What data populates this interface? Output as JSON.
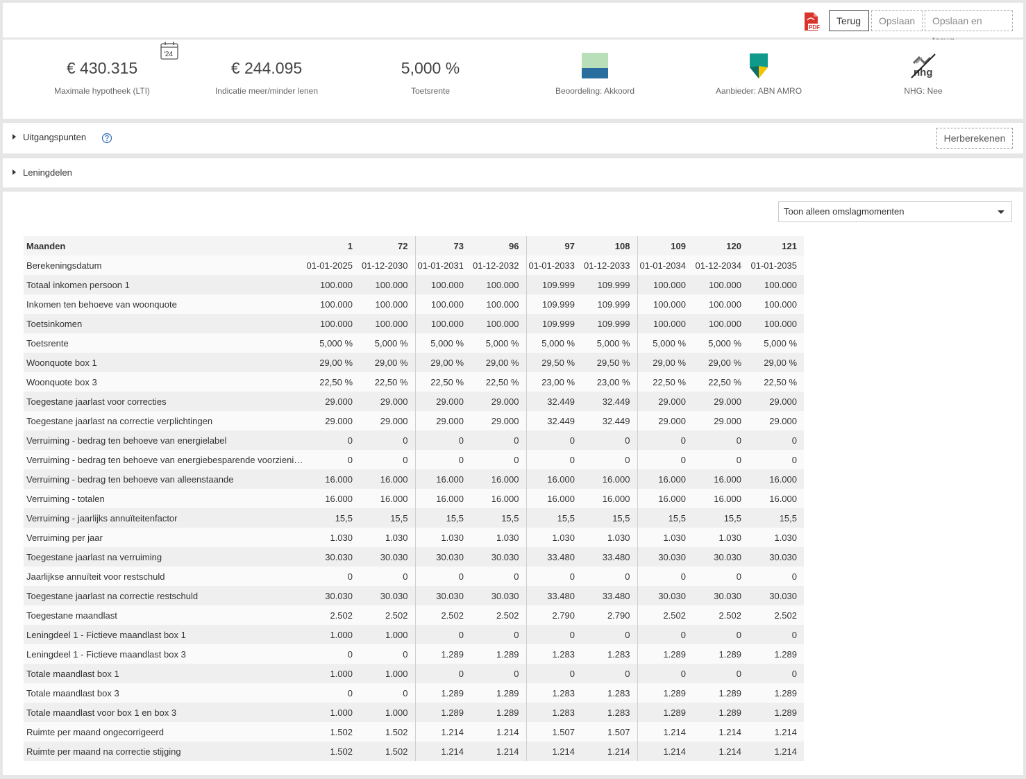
{
  "toolbar": {
    "pdf_icon": "pdf-file-icon",
    "terug_label": "Terug",
    "opslaan_label": "Opslaan",
    "opslaan_terug_label": "Opslaan en terug"
  },
  "summary": {
    "max_hypotheek": {
      "value": "€ 430.315",
      "label": "Maximale hypotheek (LTI)",
      "badge": "'24"
    },
    "indicatie": {
      "value": "€ 244.095",
      "label": "Indicatie meer/minder lenen"
    },
    "toetsrente": {
      "value": "5,000 %",
      "label": "Toetsrente"
    },
    "beoordeling": {
      "label": "Beoordeling: Akkoord",
      "colors": [
        "#b8dfb8",
        "#2a6ea0"
      ]
    },
    "aanbieder": {
      "label": "Aanbieder: ABN AMRO"
    },
    "nhg": {
      "label": "NHG: Nee",
      "logo_text": "nhg"
    }
  },
  "uitgangspunten": {
    "title": "Uitgangspunten",
    "herberekenen_label": "Herberekenen"
  },
  "leningdelen": {
    "title": "Leningdelen"
  },
  "view_select": {
    "selected": "Toon alleen omslagmomenten"
  },
  "table": {
    "header_label": "Maanden",
    "months": [
      "1",
      "72",
      "73",
      "96",
      "97",
      "108",
      "109",
      "120",
      "121"
    ],
    "datum_label": "Berekeningsdatum",
    "dates": [
      "01-01-2025",
      "01-12-2030",
      "01-01-2031",
      "01-12-2032",
      "01-01-2033",
      "01-12-2033",
      "01-01-2034",
      "01-12-2034",
      "01-01-2035"
    ],
    "rows": [
      {
        "label": "Totaal inkomen persoon 1",
        "values": [
          "100.000",
          "100.000",
          "100.000",
          "100.000",
          "109.999",
          "109.999",
          "100.000",
          "100.000",
          "100.000"
        ]
      },
      {
        "label": "Inkomen ten behoeve van woonquote",
        "values": [
          "100.000",
          "100.000",
          "100.000",
          "100.000",
          "109.999",
          "109.999",
          "100.000",
          "100.000",
          "100.000"
        ]
      },
      {
        "label": "Toetsinkomen",
        "values": [
          "100.000",
          "100.000",
          "100.000",
          "100.000",
          "109.999",
          "109.999",
          "100.000",
          "100.000",
          "100.000"
        ]
      },
      {
        "label": "Toetsrente",
        "values": [
          "5,000 %",
          "5,000 %",
          "5,000 %",
          "5,000 %",
          "5,000 %",
          "5,000 %",
          "5,000 %",
          "5,000 %",
          "5,000 %"
        ]
      },
      {
        "label": "Woonquote box 1",
        "values": [
          "29,00 %",
          "29,00 %",
          "29,00 %",
          "29,00 %",
          "29,50 %",
          "29,50 %",
          "29,00 %",
          "29,00 %",
          "29,00 %"
        ]
      },
      {
        "label": "Woonquote box 3",
        "values": [
          "22,50 %",
          "22,50 %",
          "22,50 %",
          "22,50 %",
          "23,00 %",
          "23,00 %",
          "22,50 %",
          "22,50 %",
          "22,50 %"
        ]
      },
      {
        "label": "Toegestane jaarlast voor correcties",
        "values": [
          "29.000",
          "29.000",
          "29.000",
          "29.000",
          "32.449",
          "32.449",
          "29.000",
          "29.000",
          "29.000"
        ]
      },
      {
        "label": "Toegestane jaarlast na correctie verplichtingen",
        "values": [
          "29.000",
          "29.000",
          "29.000",
          "29.000",
          "32.449",
          "32.449",
          "29.000",
          "29.000",
          "29.000"
        ]
      },
      {
        "label": "Verruiming - bedrag ten behoeve van energielabel",
        "values": [
          "0",
          "0",
          "0",
          "0",
          "0",
          "0",
          "0",
          "0",
          "0"
        ]
      },
      {
        "label": "Verruiming - bedrag ten behoeve van energiebesparende voorzienin…",
        "values": [
          "0",
          "0",
          "0",
          "0",
          "0",
          "0",
          "0",
          "0",
          "0"
        ]
      },
      {
        "label": "Verruiming - bedrag ten behoeve van alleenstaande",
        "values": [
          "16.000",
          "16.000",
          "16.000",
          "16.000",
          "16.000",
          "16.000",
          "16.000",
          "16.000",
          "16.000"
        ]
      },
      {
        "label": "Verruiming - totalen",
        "values": [
          "16.000",
          "16.000",
          "16.000",
          "16.000",
          "16.000",
          "16.000",
          "16.000",
          "16.000",
          "16.000"
        ]
      },
      {
        "label": "Verruiming - jaarlijks annuïteitenfactor",
        "values": [
          "15,5",
          "15,5",
          "15,5",
          "15,5",
          "15,5",
          "15,5",
          "15,5",
          "15,5",
          "15,5"
        ]
      },
      {
        "label": "Verruiming per jaar",
        "values": [
          "1.030",
          "1.030",
          "1.030",
          "1.030",
          "1.030",
          "1.030",
          "1.030",
          "1.030",
          "1.030"
        ]
      },
      {
        "label": "Toegestane jaarlast na verruiming",
        "values": [
          "30.030",
          "30.030",
          "30.030",
          "30.030",
          "33.480",
          "33.480",
          "30.030",
          "30.030",
          "30.030"
        ]
      },
      {
        "label": "Jaarlijkse annuïteit voor restschuld",
        "values": [
          "0",
          "0",
          "0",
          "0",
          "0",
          "0",
          "0",
          "0",
          "0"
        ]
      },
      {
        "label": "Toegestane jaarlast na correctie restschuld",
        "values": [
          "30.030",
          "30.030",
          "30.030",
          "30.030",
          "33.480",
          "33.480",
          "30.030",
          "30.030",
          "30.030"
        ]
      },
      {
        "label": "Toegestane maandlast",
        "values": [
          "2.502",
          "2.502",
          "2.502",
          "2.502",
          "2.790",
          "2.790",
          "2.502",
          "2.502",
          "2.502"
        ]
      },
      {
        "label": "Leningdeel 1 - Fictieve maandlast box 1",
        "values": [
          "1.000",
          "1.000",
          "0",
          "0",
          "0",
          "0",
          "0",
          "0",
          "0"
        ]
      },
      {
        "label": "Leningdeel 1 - Fictieve maandlast box 3",
        "values": [
          "0",
          "0",
          "1.289",
          "1.289",
          "1.283",
          "1.283",
          "1.289",
          "1.289",
          "1.289"
        ]
      },
      {
        "label": "Totale maandlast box 1",
        "values": [
          "1.000",
          "1.000",
          "0",
          "0",
          "0",
          "0",
          "0",
          "0",
          "0"
        ]
      },
      {
        "label": "Totale maandlast box 3",
        "values": [
          "0",
          "0",
          "1.289",
          "1.289",
          "1.283",
          "1.283",
          "1.289",
          "1.289",
          "1.289"
        ]
      },
      {
        "label": "Totale maandlast voor box 1 en box 3",
        "values": [
          "1.000",
          "1.000",
          "1.289",
          "1.289",
          "1.283",
          "1.283",
          "1.289",
          "1.289",
          "1.289"
        ]
      },
      {
        "label": "Ruimte per maand ongecorrigeerd",
        "values": [
          "1.502",
          "1.502",
          "1.214",
          "1.214",
          "1.507",
          "1.507",
          "1.214",
          "1.214",
          "1.214"
        ]
      },
      {
        "label": "Ruimte per maand na correctie stijging",
        "values": [
          "1.502",
          "1.502",
          "1.214",
          "1.214",
          "1.214",
          "1.214",
          "1.214",
          "1.214",
          "1.214"
        ]
      }
    ]
  }
}
